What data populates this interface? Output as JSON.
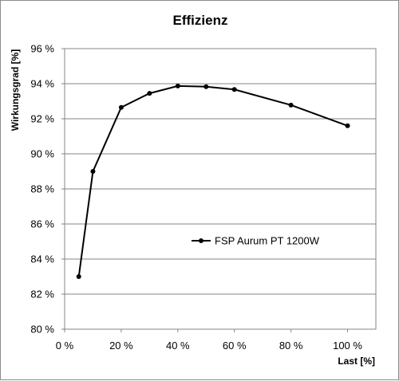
{
  "chart_data": {
    "type": "line",
    "title": "Effizienz",
    "xlabel": "Last [%]",
    "ylabel": "Wirkungsgrad [%]",
    "xlim": [
      0,
      110
    ],
    "ylim": [
      80,
      96
    ],
    "x_ticks": [
      0,
      20,
      40,
      60,
      80,
      100
    ],
    "x_tick_labels": [
      "0 %",
      "20 %",
      "40 %",
      "60 %",
      "80 %",
      "100 %"
    ],
    "y_ticks": [
      80,
      82,
      84,
      86,
      88,
      90,
      92,
      94,
      96
    ],
    "y_tick_labels": [
      "80 %",
      "82 %",
      "84 %",
      "86 %",
      "88 %",
      "90 %",
      "92 %",
      "94 %",
      "96 %"
    ],
    "grid": "horizontal",
    "legend_position": "center-right",
    "series": [
      {
        "name": "FSP Aurum PT 1200W",
        "color": "#000000",
        "x": [
          5,
          10,
          20,
          30,
          40,
          50,
          60,
          80,
          100
        ],
        "y": [
          83.0,
          89.0,
          92.65,
          93.45,
          93.87,
          93.83,
          93.67,
          92.78,
          91.6
        ]
      }
    ]
  }
}
